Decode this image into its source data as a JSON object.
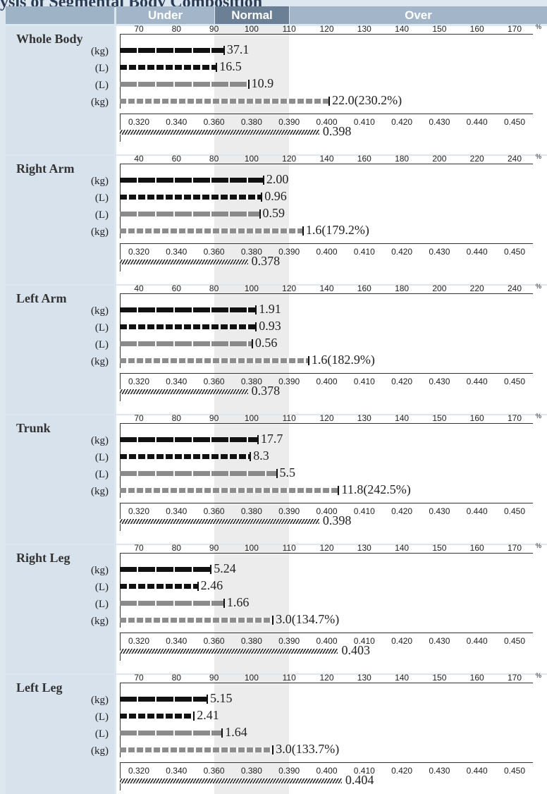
{
  "header": {
    "clipped_title": "ysis of Segmental Body Composition",
    "under_label": "Under",
    "normal_label": "Normal",
    "over_label": "Over"
  },
  "chart_data": [
    {
      "type": "bar",
      "title": "Whole Body",
      "percent_axis": {
        "ticks": [
          "70",
          "80",
          "90",
          "100",
          "110",
          "120",
          "130",
          "140",
          "150",
          "160",
          "170"
        ],
        "range": [
          65,
          175
        ],
        "unit": "%"
      },
      "ratio_axis": {
        "ticks": [
          "0.320",
          "0.340",
          "0.360",
          "0.380",
          "0.390",
          "0.400",
          "0.410",
          "0.420",
          "0.430",
          "0.440",
          "0.450"
        ]
      },
      "series": [
        {
          "unit": "(kg)",
          "label": "37.1",
          "value_percent": 92.5,
          "style": "black-dash"
        },
        {
          "unit": "(L)",
          "label": "16.5",
          "value_percent": 90.5,
          "style": "black-dash-fine"
        },
        {
          "unit": "(L)",
          "label": "10.9",
          "value_percent": 99.0,
          "style": "gray-dash"
        },
        {
          "unit": "(kg)",
          "label": "22.0(230.2%)",
          "value_percent": 120.5,
          "style": "gray-dash-fine"
        },
        {
          "unit": "",
          "label": "0.398",
          "value_ratio": 0.398,
          "style": "hatch"
        }
      ]
    },
    {
      "type": "bar",
      "title": "Right Arm",
      "percent_axis": {
        "ticks": [
          "40",
          "60",
          "80",
          "100",
          "120",
          "140",
          "160",
          "180",
          "200",
          "220",
          "240"
        ],
        "range": [
          30,
          250
        ],
        "unit": "%"
      },
      "ratio_axis": {
        "ticks": [
          "0.320",
          "0.340",
          "0.360",
          "0.380",
          "0.390",
          "0.400",
          "0.410",
          "0.420",
          "0.430",
          "0.440",
          "0.450"
        ]
      },
      "series": [
        {
          "unit": "(kg)",
          "label": "2.00",
          "value_percent": 106,
          "style": "black-dash"
        },
        {
          "unit": "(L)",
          "label": "0.96",
          "value_percent": 105,
          "style": "black-dash-fine"
        },
        {
          "unit": "(L)",
          "label": "0.59",
          "value_percent": 104,
          "style": "gray-dash"
        },
        {
          "unit": "(kg)",
          "label": "1.6(179.2%)",
          "value_percent": 127,
          "style": "gray-dash-fine"
        },
        {
          "unit": "",
          "label": "0.378",
          "value_ratio": 0.378,
          "style": "hatch"
        }
      ]
    },
    {
      "type": "bar",
      "title": "Left Arm",
      "percent_axis": {
        "ticks": [
          "40",
          "60",
          "80",
          "100",
          "120",
          "140",
          "160",
          "180",
          "200",
          "220",
          "240"
        ],
        "range": [
          30,
          250
        ],
        "unit": "%"
      },
      "ratio_axis": {
        "ticks": [
          "0.320",
          "0.340",
          "0.360",
          "0.380",
          "0.390",
          "0.400",
          "0.410",
          "0.420",
          "0.430",
          "0.440",
          "0.450"
        ]
      },
      "series": [
        {
          "unit": "(kg)",
          "label": "1.91",
          "value_percent": 102,
          "style": "black-dash"
        },
        {
          "unit": "(L)",
          "label": "0.93",
          "value_percent": 102,
          "style": "black-dash-fine"
        },
        {
          "unit": "(L)",
          "label": "0.56",
          "value_percent": 100,
          "style": "gray-dash"
        },
        {
          "unit": "(kg)",
          "label": "1.6(182.9%)",
          "value_percent": 130,
          "style": "gray-dash-fine"
        },
        {
          "unit": "",
          "label": "0.378",
          "value_ratio": 0.378,
          "style": "hatch"
        }
      ]
    },
    {
      "type": "bar",
      "title": "Trunk",
      "percent_axis": {
        "ticks": [
          "70",
          "80",
          "90",
          "100",
          "110",
          "120",
          "130",
          "140",
          "150",
          "160",
          "170"
        ],
        "range": [
          65,
          175
        ],
        "unit": "%"
      },
      "ratio_axis": {
        "ticks": [
          "0.320",
          "0.340",
          "0.360",
          "0.380",
          "0.390",
          "0.400",
          "0.410",
          "0.420",
          "0.430",
          "0.440",
          "0.450"
        ]
      },
      "series": [
        {
          "unit": "(kg)",
          "label": "17.7",
          "value_percent": 101.5,
          "style": "black-dash"
        },
        {
          "unit": "(L)",
          "label": "8.3",
          "value_percent": 99.5,
          "style": "black-dash-fine"
        },
        {
          "unit": "(L)",
          "label": "5.5",
          "value_percent": 106.5,
          "style": "gray-dash"
        },
        {
          "unit": "(kg)",
          "label": "11.8(242.5%)",
          "value_percent": 123,
          "style": "gray-dash-fine"
        },
        {
          "unit": "",
          "label": "0.398",
          "value_ratio": 0.398,
          "style": "hatch"
        }
      ]
    },
    {
      "type": "bar",
      "title": "Right Leg",
      "percent_axis": {
        "ticks": [
          "70",
          "80",
          "90",
          "100",
          "110",
          "120",
          "130",
          "140",
          "150",
          "160",
          "170"
        ],
        "range": [
          65,
          175
        ],
        "unit": "%"
      },
      "ratio_axis": {
        "ticks": [
          "0.320",
          "0.340",
          "0.360",
          "0.380",
          "0.390",
          "0.400",
          "0.410",
          "0.420",
          "0.430",
          "0.440",
          "0.450"
        ]
      },
      "series": [
        {
          "unit": "(kg)",
          "label": "5.24",
          "value_percent": 89,
          "style": "black-dash"
        },
        {
          "unit": "(L)",
          "label": "2.46",
          "value_percent": 85.5,
          "style": "black-dash-fine"
        },
        {
          "unit": "(L)",
          "label": "1.66",
          "value_percent": 92.5,
          "style": "gray-dash"
        },
        {
          "unit": "(kg)",
          "label": "3.0(134.7%)",
          "value_percent": 105.5,
          "style": "gray-dash-fine"
        },
        {
          "unit": "",
          "label": "0.403",
          "value_ratio": 0.403,
          "style": "hatch"
        }
      ]
    },
    {
      "type": "bar",
      "title": "Left Leg",
      "percent_axis": {
        "ticks": [
          "70",
          "80",
          "90",
          "100",
          "110",
          "120",
          "130",
          "140",
          "150",
          "160",
          "170"
        ],
        "range": [
          65,
          175
        ],
        "unit": "%"
      },
      "ratio_axis": {
        "ticks": [
          "0.320",
          "0.340",
          "0.360",
          "0.380",
          "0.390",
          "0.400",
          "0.410",
          "0.420",
          "0.430",
          "0.440",
          "0.450"
        ]
      },
      "series": [
        {
          "unit": "(kg)",
          "label": "5.15",
          "value_percent": 88,
          "style": "black-dash"
        },
        {
          "unit": "(L)",
          "label": "2.41",
          "value_percent": 84.5,
          "style": "black-dash-fine"
        },
        {
          "unit": "(L)",
          "label": "1.64",
          "value_percent": 92,
          "style": "gray-dash"
        },
        {
          "unit": "(kg)",
          "label": "3.0(133.7%)",
          "value_percent": 105.5,
          "style": "gray-dash-fine"
        },
        {
          "unit": "",
          "label": "0.404",
          "value_ratio": 0.404,
          "style": "hatch"
        }
      ]
    }
  ]
}
